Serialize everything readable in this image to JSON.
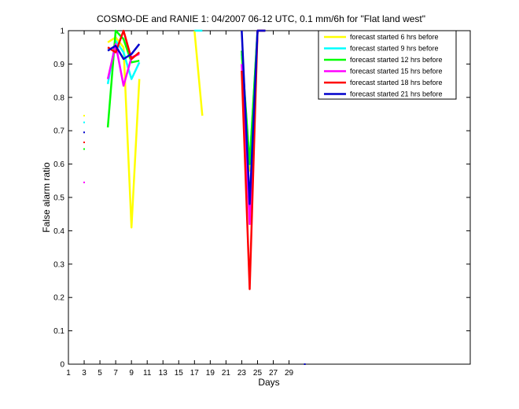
{
  "chart_data": {
    "type": "line",
    "title": "COSMO-DE and RANIE 1: 04/2007 06-12 UTC, 0.1 mm/6h for \"Flat land west\"",
    "xlabel": "Days",
    "ylabel": "False alarm ratio",
    "xlim": [
      1,
      52
    ],
    "ylim": [
      0,
      1
    ],
    "xticks": [
      1,
      3,
      5,
      7,
      9,
      11,
      13,
      15,
      17,
      19,
      21,
      23,
      25,
      27,
      29
    ],
    "yticks": [
      0,
      0.1,
      0.2,
      0.3,
      0.4,
      0.5,
      0.6,
      0.7,
      0.8,
      0.9,
      1
    ],
    "ytick_labels": [
      "0",
      "0.1",
      "0.2",
      "0.3",
      "0.4",
      "0.5",
      "0.6",
      "0.7",
      "0.8",
      "0.9",
      "1"
    ],
    "grid": false,
    "legend_position": "top-right",
    "series": [
      {
        "name": "forecast started 6 hrs before",
        "color": "#ffff00",
        "points": [
          [
            3,
            0.745
          ],
          [
            6,
            0.965
          ],
          [
            7,
            0.98
          ],
          [
            8,
            0.95
          ],
          [
            9,
            0.41
          ],
          [
            10,
            0.855
          ],
          [
            17,
            1.0
          ],
          [
            18,
            0.745
          ],
          [
            23,
            0.92
          ],
          [
            24,
            0.58
          ],
          [
            25,
            1.0
          ],
          [
            26,
            1.0
          ]
        ]
      },
      {
        "name": "forecast started 9 hrs before",
        "color": "#00ffff",
        "points": [
          [
            3,
            0.725
          ],
          [
            6,
            0.84
          ],
          [
            7,
            0.97
          ],
          [
            8,
            0.935
          ],
          [
            9,
            0.855
          ],
          [
            10,
            0.905
          ],
          [
            17,
            1.0
          ],
          [
            18,
            1.0
          ],
          [
            23,
            0.93
          ],
          [
            24,
            0.6
          ],
          [
            25,
            1.0
          ],
          [
            26,
            1.0
          ]
        ]
      },
      {
        "name": "forecast started 12 hrs before",
        "color": "#00ff00",
        "points": [
          [
            3,
            0.645
          ],
          [
            6,
            0.71
          ],
          [
            7,
            1.0
          ],
          [
            8,
            0.975
          ],
          [
            9,
            0.905
          ],
          [
            10,
            0.91
          ],
          [
            23,
            0.94
          ],
          [
            24,
            0.6
          ],
          [
            25,
            1.0
          ],
          [
            26,
            1.0
          ]
        ]
      },
      {
        "name": "forecast started 15 hrs before",
        "color": "#ff00ff",
        "points": [
          [
            3,
            0.545
          ],
          [
            6,
            0.855
          ],
          [
            7,
            0.96
          ],
          [
            8,
            0.835
          ],
          [
            9,
            0.92
          ],
          [
            10,
            0.93
          ],
          [
            23,
            0.9
          ],
          [
            24,
            0.42
          ],
          [
            25,
            1.0
          ],
          [
            26,
            1.0
          ]
        ]
      },
      {
        "name": "forecast started 18 hrs before",
        "color": "#ff0000",
        "points": [
          [
            3,
            0.665
          ],
          [
            6,
            0.95
          ],
          [
            7,
            0.935
          ],
          [
            8,
            1.0
          ],
          [
            9,
            0.915
          ],
          [
            10,
            0.935
          ],
          [
            23,
            0.88
          ],
          [
            24,
            0.225
          ],
          [
            25,
            1.0
          ],
          [
            26,
            1.0
          ]
        ]
      },
      {
        "name": "forecast started 21 hrs before",
        "color": "#0000cc",
        "points": [
          [
            3,
            0.695
          ],
          [
            6,
            0.94
          ],
          [
            7,
            0.955
          ],
          [
            8,
            0.915
          ],
          [
            9,
            0.93
          ],
          [
            10,
            0.96
          ],
          [
            23,
            1.0
          ],
          [
            24,
            0.48
          ],
          [
            25,
            1.0
          ],
          [
            26,
            1.0
          ],
          [
            31,
            0.0
          ]
        ]
      }
    ]
  }
}
